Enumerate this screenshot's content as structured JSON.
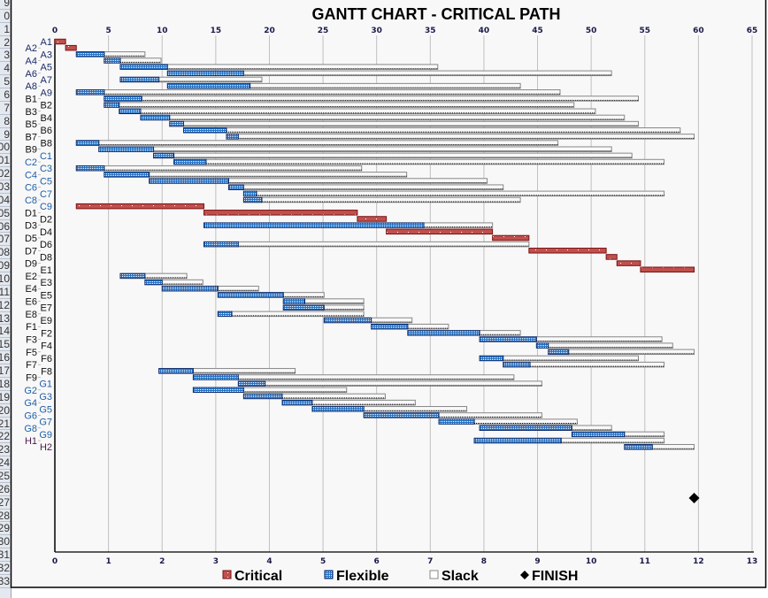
{
  "row_headers": [
    "9",
    "0",
    "1",
    "2",
    "3",
    "4",
    "5",
    "6",
    "7",
    "8",
    "9",
    "00",
    "01",
    "02",
    "03",
    "04",
    "05",
    "06",
    "07",
    "08",
    "09",
    "10",
    "11",
    "12",
    "13",
    "14",
    "15",
    "16",
    "17",
    "18",
    "19",
    "20",
    "21",
    "22",
    "23",
    "24",
    "25",
    "26",
    "27",
    "28",
    "29",
    "30",
    "31",
    "32",
    "33"
  ],
  "colors": {
    "critical": "#c0504d",
    "critical_border": "#7a1212",
    "flexible": "#1e6fc4",
    "flexible_border": "#0d2a6a",
    "slack_border": "#888888",
    "grid": "#c0c0c0"
  },
  "chart_data": {
    "type": "gantt",
    "title": "GANTT CHART - CRITICAL PATH",
    "x_top": {
      "min": 0,
      "max": 65,
      "step": 5,
      "ticks": [
        "0",
        "5",
        "10",
        "15",
        "20",
        "25",
        "30",
        "35",
        "40",
        "45",
        "50",
        "55",
        "60",
        "65"
      ]
    },
    "x_bottom": {
      "min": 0,
      "max": 13,
      "step": 1,
      "ticks": [
        "0",
        "1",
        "2",
        "3",
        "4",
        "5",
        "6",
        "7",
        "8",
        "9",
        "10",
        "11",
        "12",
        "13"
      ]
    },
    "grid": true,
    "legend_position": "bottom",
    "legend": [
      {
        "key": "critical",
        "label": "Critical"
      },
      {
        "key": "flexible",
        "label": "Flexible"
      },
      {
        "key": "slack",
        "label": "Slack"
      },
      {
        "key": "finish",
        "label": "FINISH"
      }
    ],
    "finish": 59.6,
    "tasks": [
      {
        "name": "A1",
        "type": "critical",
        "start": 0,
        "end": 1,
        "slack_end": null
      },
      {
        "name": "A2",
        "type": "critical",
        "start": 1,
        "end": 2,
        "slack_end": null
      },
      {
        "name": "A3",
        "type": "flexible",
        "start": 2,
        "end": 4.6,
        "slack_end": 8.4
      },
      {
        "name": "A4",
        "type": "flexible",
        "start": 4.6,
        "end": 6.1,
        "slack_end": 9.9
      },
      {
        "name": "A5",
        "type": "flexible",
        "start": 6.1,
        "end": 10.5,
        "slack_end": 35.7
      },
      {
        "name": "A6",
        "type": "flexible",
        "start": 10.5,
        "end": 17.6,
        "slack_end": 51.9
      },
      {
        "name": "A7",
        "type": "flexible",
        "start": 6.1,
        "end": 9.7,
        "slack_end": 19.3
      },
      {
        "name": "A8",
        "type": "flexible",
        "start": 10.5,
        "end": 18.2,
        "slack_end": 43.4
      },
      {
        "name": "A9",
        "type": "flexible",
        "start": 2,
        "end": 4.6,
        "slack_end": 47.1
      },
      {
        "name": "B1",
        "type": "flexible",
        "start": 4.6,
        "end": 8.1,
        "slack_end": 54.4
      },
      {
        "name": "B2",
        "type": "flexible",
        "start": 4.6,
        "end": 6,
        "slack_end": 48.4
      },
      {
        "name": "B3",
        "type": "flexible",
        "start": 6,
        "end": 8,
        "slack_end": 50.4
      },
      {
        "name": "B4",
        "type": "flexible",
        "start": 8,
        "end": 10.7,
        "slack_end": 53.1
      },
      {
        "name": "B5",
        "type": "flexible",
        "start": 10.7,
        "end": 12,
        "slack_end": 54.4
      },
      {
        "name": "B6",
        "type": "flexible",
        "start": 12,
        "end": 16,
        "slack_end": 58.3
      },
      {
        "name": "B7",
        "type": "flexible",
        "start": 16,
        "end": 17.1,
        "slack_end": 59.6
      },
      {
        "name": "B8",
        "type": "flexible",
        "start": 2,
        "end": 4.1,
        "slack_end": 46.9
      },
      {
        "name": "B9",
        "type": "flexible",
        "start": 4.1,
        "end": 9.2,
        "slack_end": 51.9
      },
      {
        "name": "C1",
        "type": "flexible",
        "start": 9.2,
        "end": 11.1,
        "slack_end": 53.8
      },
      {
        "name": "C2",
        "type": "flexible",
        "start": 11.1,
        "end": 14.1,
        "slack_end": 56.8
      },
      {
        "name": "C3",
        "type": "flexible",
        "start": 2,
        "end": 4.6,
        "slack_end": 28.6
      },
      {
        "name": "C4",
        "type": "flexible",
        "start": 4.6,
        "end": 8.8,
        "slack_end": 32.8
      },
      {
        "name": "C5",
        "type": "flexible",
        "start": 8.8,
        "end": 16.2,
        "slack_end": 40.3
      },
      {
        "name": "C6",
        "type": "flexible",
        "start": 16.2,
        "end": 17.6,
        "slack_end": 41.8
      },
      {
        "name": "C7",
        "type": "flexible",
        "start": 17.6,
        "end": 18.8,
        "slack_end": 56.8
      },
      {
        "name": "C8",
        "type": "flexible",
        "start": 17.6,
        "end": 19.3,
        "slack_end": 43.4
      },
      {
        "name": "C9",
        "type": "critical",
        "start": 2,
        "end": 13.9,
        "slack_end": null
      },
      {
        "name": "D1",
        "type": "critical",
        "start": 13.9,
        "end": 28.2,
        "slack_end": null
      },
      {
        "name": "D2",
        "type": "critical",
        "start": 28.2,
        "end": 30.9,
        "slack_end": null
      },
      {
        "name": "D3",
        "type": "flexible",
        "start": 13.9,
        "end": 34.4,
        "slack_end": 40.8
      },
      {
        "name": "D4",
        "type": "critical",
        "start": 30.9,
        "end": 40.8,
        "slack_end": null
      },
      {
        "name": "D5",
        "type": "critical",
        "start": 40.8,
        "end": 44.2,
        "slack_end": null
      },
      {
        "name": "D6",
        "type": "flexible",
        "start": 13.9,
        "end": 17.1,
        "slack_end": 44.2
      },
      {
        "name": "D7",
        "type": "critical",
        "start": 44.2,
        "end": 51.4,
        "slack_end": null
      },
      {
        "name": "D8",
        "type": "critical",
        "start": 51.4,
        "end": 52.4,
        "slack_end": null
      },
      {
        "name": "D9",
        "type": "critical",
        "start": 52.4,
        "end": 54.6,
        "slack_end": null
      },
      {
        "name": "E1",
        "type": "critical",
        "start": 54.6,
        "end": 59.6,
        "slack_end": null
      },
      {
        "name": "E2",
        "type": "flexible",
        "start": 6.1,
        "end": 8.4,
        "slack_end": 12.3
      },
      {
        "name": "E3",
        "type": "flexible",
        "start": 8.4,
        "end": 10,
        "slack_end": 13.8
      },
      {
        "name": "E4",
        "type": "flexible",
        "start": 10,
        "end": 15.2,
        "slack_end": 19
      },
      {
        "name": "E5",
        "type": "flexible",
        "start": 15.2,
        "end": 21.3,
        "slack_end": 25.1
      },
      {
        "name": "E6",
        "type": "flexible",
        "start": 21.3,
        "end": 23.3,
        "slack_end": 28.8
      },
      {
        "name": "E7",
        "type": "flexible",
        "start": 21.3,
        "end": 25.1,
        "slack_end": 28.8
      },
      {
        "name": "E8",
        "type": "flexible",
        "start": 15.2,
        "end": 16.5,
        "slack_end": 28.8
      },
      {
        "name": "E9",
        "type": "flexible",
        "start": 25.1,
        "end": 29.5,
        "slack_end": 33.3
      },
      {
        "name": "F1",
        "type": "flexible",
        "start": 29.5,
        "end": 32.9,
        "slack_end": 36.7
      },
      {
        "name": "F2",
        "type": "flexible",
        "start": 32.9,
        "end": 39.6,
        "slack_end": 43.4
      },
      {
        "name": "F3",
        "type": "flexible",
        "start": 39.6,
        "end": 44.9,
        "slack_end": 56.6
      },
      {
        "name": "F4",
        "type": "flexible",
        "start": 44.9,
        "end": 46,
        "slack_end": 57.6
      },
      {
        "name": "F5",
        "type": "flexible",
        "start": 46,
        "end": 47.9,
        "slack_end": 59.6
      },
      {
        "name": "F6",
        "type": "flexible",
        "start": 39.6,
        "end": 41.8,
        "slack_end": 54.4
      },
      {
        "name": "F7",
        "type": "flexible",
        "start": 41.8,
        "end": 44.3,
        "slack_end": 56.8
      },
      {
        "name": "F8",
        "type": "flexible",
        "start": 9.7,
        "end": 12.9,
        "slack_end": 22.4
      },
      {
        "name": "F9",
        "type": "flexible",
        "start": 12.9,
        "end": 17.1,
        "slack_end": 42.8
      },
      {
        "name": "G1",
        "type": "flexible",
        "start": 17.1,
        "end": 19.6,
        "slack_end": 45.4
      },
      {
        "name": "G2",
        "type": "flexible",
        "start": 12.9,
        "end": 17.6,
        "slack_end": 27.2
      },
      {
        "name": "G3",
        "type": "flexible",
        "start": 17.6,
        "end": 21.2,
        "slack_end": 30.8
      },
      {
        "name": "G4",
        "type": "flexible",
        "start": 21.2,
        "end": 24,
        "slack_end": 33.6
      },
      {
        "name": "G5",
        "type": "flexible",
        "start": 24,
        "end": 28.8,
        "slack_end": 38.4
      },
      {
        "name": "G6",
        "type": "flexible",
        "start": 28.8,
        "end": 35.8,
        "slack_end": 45.4
      },
      {
        "name": "G7",
        "type": "flexible",
        "start": 35.8,
        "end": 39.1,
        "slack_end": 48.7
      },
      {
        "name": "G8",
        "type": "flexible",
        "start": 39.6,
        "end": 48.2,
        "slack_end": 51.9
      },
      {
        "name": "G9",
        "type": "flexible",
        "start": 48.2,
        "end": 53.1,
        "slack_end": 56.8
      },
      {
        "name": "H1",
        "type": "flexible",
        "start": 39.1,
        "end": 47.2,
        "slack_end": 56.8
      },
      {
        "name": "H2",
        "type": "flexible",
        "start": 53.1,
        "end": 55.7,
        "slack_end": 59.6
      }
    ]
  }
}
